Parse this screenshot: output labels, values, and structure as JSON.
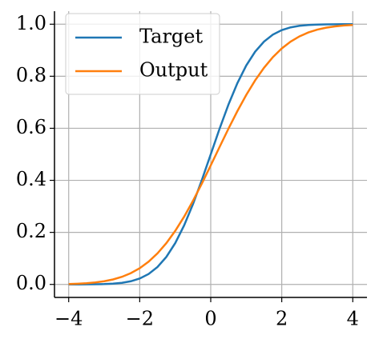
{
  "chart_data": {
    "type": "line",
    "x": [
      -4,
      -3.75,
      -3.5,
      -3.25,
      -3,
      -2.75,
      -2.5,
      -2.25,
      -2,
      -1.75,
      -1.5,
      -1.25,
      -1,
      -0.75,
      -0.5,
      -0.25,
      0,
      0.25,
      0.5,
      0.75,
      1,
      1.25,
      1.5,
      1.75,
      2,
      2.25,
      2.5,
      2.75,
      3,
      3.25,
      3.5,
      3.75,
      4
    ],
    "series": [
      {
        "name": "Target",
        "color": "#1f77b4",
        "values": [
          0.0,
          0.0001,
          0.0002,
          0.0006,
          0.0013,
          0.003,
          0.0062,
          0.0122,
          0.0228,
          0.0401,
          0.0668,
          0.1056,
          0.1587,
          0.2266,
          0.3085,
          0.4013,
          0.5,
          0.5987,
          0.6915,
          0.7734,
          0.8413,
          0.8944,
          0.9332,
          0.9599,
          0.9772,
          0.9878,
          0.9938,
          0.997,
          0.9987,
          0.9994,
          0.9998,
          0.9999,
          1.0
        ]
      },
      {
        "name": "Output",
        "color": "#ff7f0e",
        "values": [
          0.0015,
          0.0027,
          0.0046,
          0.0076,
          0.0122,
          0.0192,
          0.0292,
          0.0433,
          0.0623,
          0.0874,
          0.1193,
          0.1587,
          0.2058,
          0.2601,
          0.3213,
          0.3875,
          0.4574,
          0.5284,
          0.5987,
          0.6659,
          0.7281,
          0.784,
          0.8325,
          0.8735,
          0.9068,
          0.9332,
          0.9534,
          0.9684,
          0.9791,
          0.9866,
          0.9916,
          0.9949,
          0.997
        ]
      }
    ],
    "xlim": [
      -4.4,
      4.4
    ],
    "xticks": [
      {
        "value": -4,
        "label": "−4"
      },
      {
        "value": -2,
        "label": "−2"
      },
      0,
      2,
      4
    ],
    "ylim": [
      -0.05,
      1.05
    ],
    "yticks": [
      {
        "value": 0,
        "label": "0.0"
      },
      0.2,
      0.4,
      0.6,
      0.8,
      {
        "value": 1,
        "label": "1.0"
      }
    ],
    "grid": true,
    "legend": "upper-left"
  }
}
